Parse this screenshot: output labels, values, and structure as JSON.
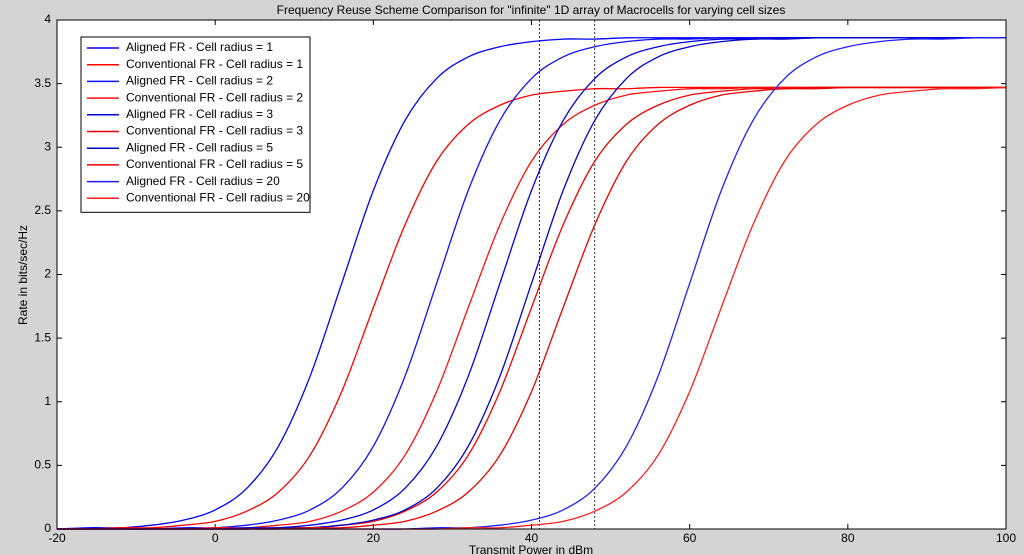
{
  "chart_data": {
    "type": "line",
    "title": "Frequency Reuse Scheme Comparison for \"infinite\" 1D array of Macrocells for varying cell sizes",
    "x_label": "Transmit Power in dBm",
    "y_label": "Rate in bits/sec/Hz",
    "x": [
      -20,
      -16,
      -12,
      -8,
      -4,
      0,
      4,
      8,
      12,
      16,
      20,
      24,
      28,
      32,
      36,
      40,
      44,
      48,
      52,
      56,
      60,
      64,
      68,
      72,
      76,
      80,
      84,
      88,
      92,
      96,
      100
    ],
    "series": [
      {
        "name": "Aligned FR - Cell radius = 1",
        "color": "#0000ff",
        "values": [
          0,
          0.01,
          0.01,
          0.03,
          0.07,
          0.15,
          0.32,
          0.65,
          1.2,
          1.93,
          2.66,
          3.21,
          3.54,
          3.71,
          3.79,
          3.83,
          3.85,
          3.85,
          3.86,
          3.86,
          3.86,
          3.86,
          3.86,
          3.86,
          3.86,
          3.86,
          3.86,
          3.86,
          3.86,
          3.86,
          3.86
        ]
      },
      {
        "name": "Conventional FR - Cell radius = 1",
        "color": "#ff0000",
        "values": [
          0,
          0,
          0.01,
          0.01,
          0.03,
          0.06,
          0.14,
          0.29,
          0.58,
          1.08,
          1.74,
          2.39,
          2.89,
          3.18,
          3.33,
          3.41,
          3.44,
          3.46,
          3.46,
          3.47,
          3.47,
          3.47,
          3.47,
          3.47,
          3.47,
          3.47,
          3.47,
          3.47,
          3.47,
          3.47,
          3.47
        ]
      },
      {
        "name": "Aligned FR - Cell radius = 2",
        "color": "#1010ff",
        "values": [
          0,
          0,
          0,
          0,
          0.01,
          0.01,
          0.03,
          0.07,
          0.15,
          0.32,
          0.65,
          1.2,
          1.93,
          2.66,
          3.21,
          3.54,
          3.71,
          3.79,
          3.83,
          3.85,
          3.85,
          3.86,
          3.86,
          3.86,
          3.86,
          3.86,
          3.86,
          3.86,
          3.86,
          3.86,
          3.86
        ]
      },
      {
        "name": "Conventional FR - Cell radius = 2",
        "color": "#ff1010",
        "values": [
          0,
          0,
          0,
          0,
          0,
          0.01,
          0.01,
          0.03,
          0.06,
          0.14,
          0.29,
          0.58,
          1.08,
          1.74,
          2.39,
          2.89,
          3.18,
          3.33,
          3.41,
          3.44,
          3.46,
          3.46,
          3.47,
          3.47,
          3.47,
          3.47,
          3.47,
          3.47,
          3.47,
          3.47,
          3.47
        ]
      },
      {
        "name": "Aligned FR - Cell radius = 3",
        "color": "#0000e0",
        "values": [
          0,
          0,
          0,
          0,
          0,
          0,
          0.01,
          0.01,
          0.03,
          0.07,
          0.15,
          0.32,
          0.65,
          1.2,
          1.93,
          2.66,
          3.21,
          3.54,
          3.71,
          3.79,
          3.83,
          3.85,
          3.85,
          3.86,
          3.86,
          3.86,
          3.86,
          3.86,
          3.86,
          3.86,
          3.86
        ]
      },
      {
        "name": "Conventional FR - Cell radius = 3",
        "color": "#f00000",
        "values": [
          0,
          0,
          0,
          0,
          0,
          0,
          0,
          0.01,
          0.01,
          0.03,
          0.06,
          0.14,
          0.29,
          0.58,
          1.08,
          1.74,
          2.39,
          2.89,
          3.18,
          3.33,
          3.41,
          3.44,
          3.46,
          3.46,
          3.47,
          3.47,
          3.47,
          3.47,
          3.47,
          3.47,
          3.47
        ]
      },
      {
        "name": "Aligned FR - Cell radius = 5",
        "color": "#0000c8",
        "values": [
          0,
          0,
          0,
          0,
          0,
          0,
          0,
          0.01,
          0.01,
          0.03,
          0.07,
          0.15,
          0.32,
          0.65,
          1.2,
          1.93,
          2.66,
          3.21,
          3.54,
          3.71,
          3.79,
          3.83,
          3.85,
          3.85,
          3.86,
          3.86,
          3.86,
          3.86,
          3.86,
          3.86,
          3.86
        ]
      },
      {
        "name": "Conventional FR - Cell radius = 5",
        "color": "#e80000",
        "values": [
          0,
          0,
          0,
          0,
          0,
          0,
          0,
          0,
          0.01,
          0.01,
          0.03,
          0.06,
          0.14,
          0.29,
          0.58,
          1.08,
          1.74,
          2.39,
          2.89,
          3.18,
          3.33,
          3.41,
          3.44,
          3.46,
          3.46,
          3.47,
          3.47,
          3.47,
          3.47,
          3.47,
          3.47
        ]
      },
      {
        "name": "Aligned FR - Cell radius = 20",
        "color": "#2020ff",
        "values": [
          0,
          0,
          0,
          0,
          0,
          0,
          0,
          0,
          0,
          0,
          0,
          0,
          0.01,
          0.01,
          0.03,
          0.07,
          0.15,
          0.32,
          0.65,
          1.2,
          1.93,
          2.66,
          3.21,
          3.54,
          3.71,
          3.79,
          3.83,
          3.85,
          3.85,
          3.86,
          3.86
        ]
      },
      {
        "name": "Conventional FR - Cell radius = 20",
        "color": "#ff2020",
        "values": [
          0,
          0,
          0,
          0,
          0,
          0,
          0,
          0,
          0,
          0,
          0,
          0,
          0,
          0.01,
          0.01,
          0.03,
          0.06,
          0.14,
          0.29,
          0.58,
          1.08,
          1.74,
          2.39,
          2.89,
          3.18,
          3.33,
          3.41,
          3.44,
          3.46,
          3.46,
          3.47
        ]
      }
    ],
    "vlines": [
      41,
      48
    ],
    "xlim": [
      -20,
      100
    ],
    "ylim": [
      0,
      4
    ],
    "xticks": [
      -20,
      0,
      20,
      40,
      60,
      80,
      100
    ],
    "yticks": [
      0,
      0.5,
      1,
      1.5,
      2,
      2.5,
      3,
      3.5,
      4
    ],
    "legend": "upper left",
    "grid": false
  }
}
